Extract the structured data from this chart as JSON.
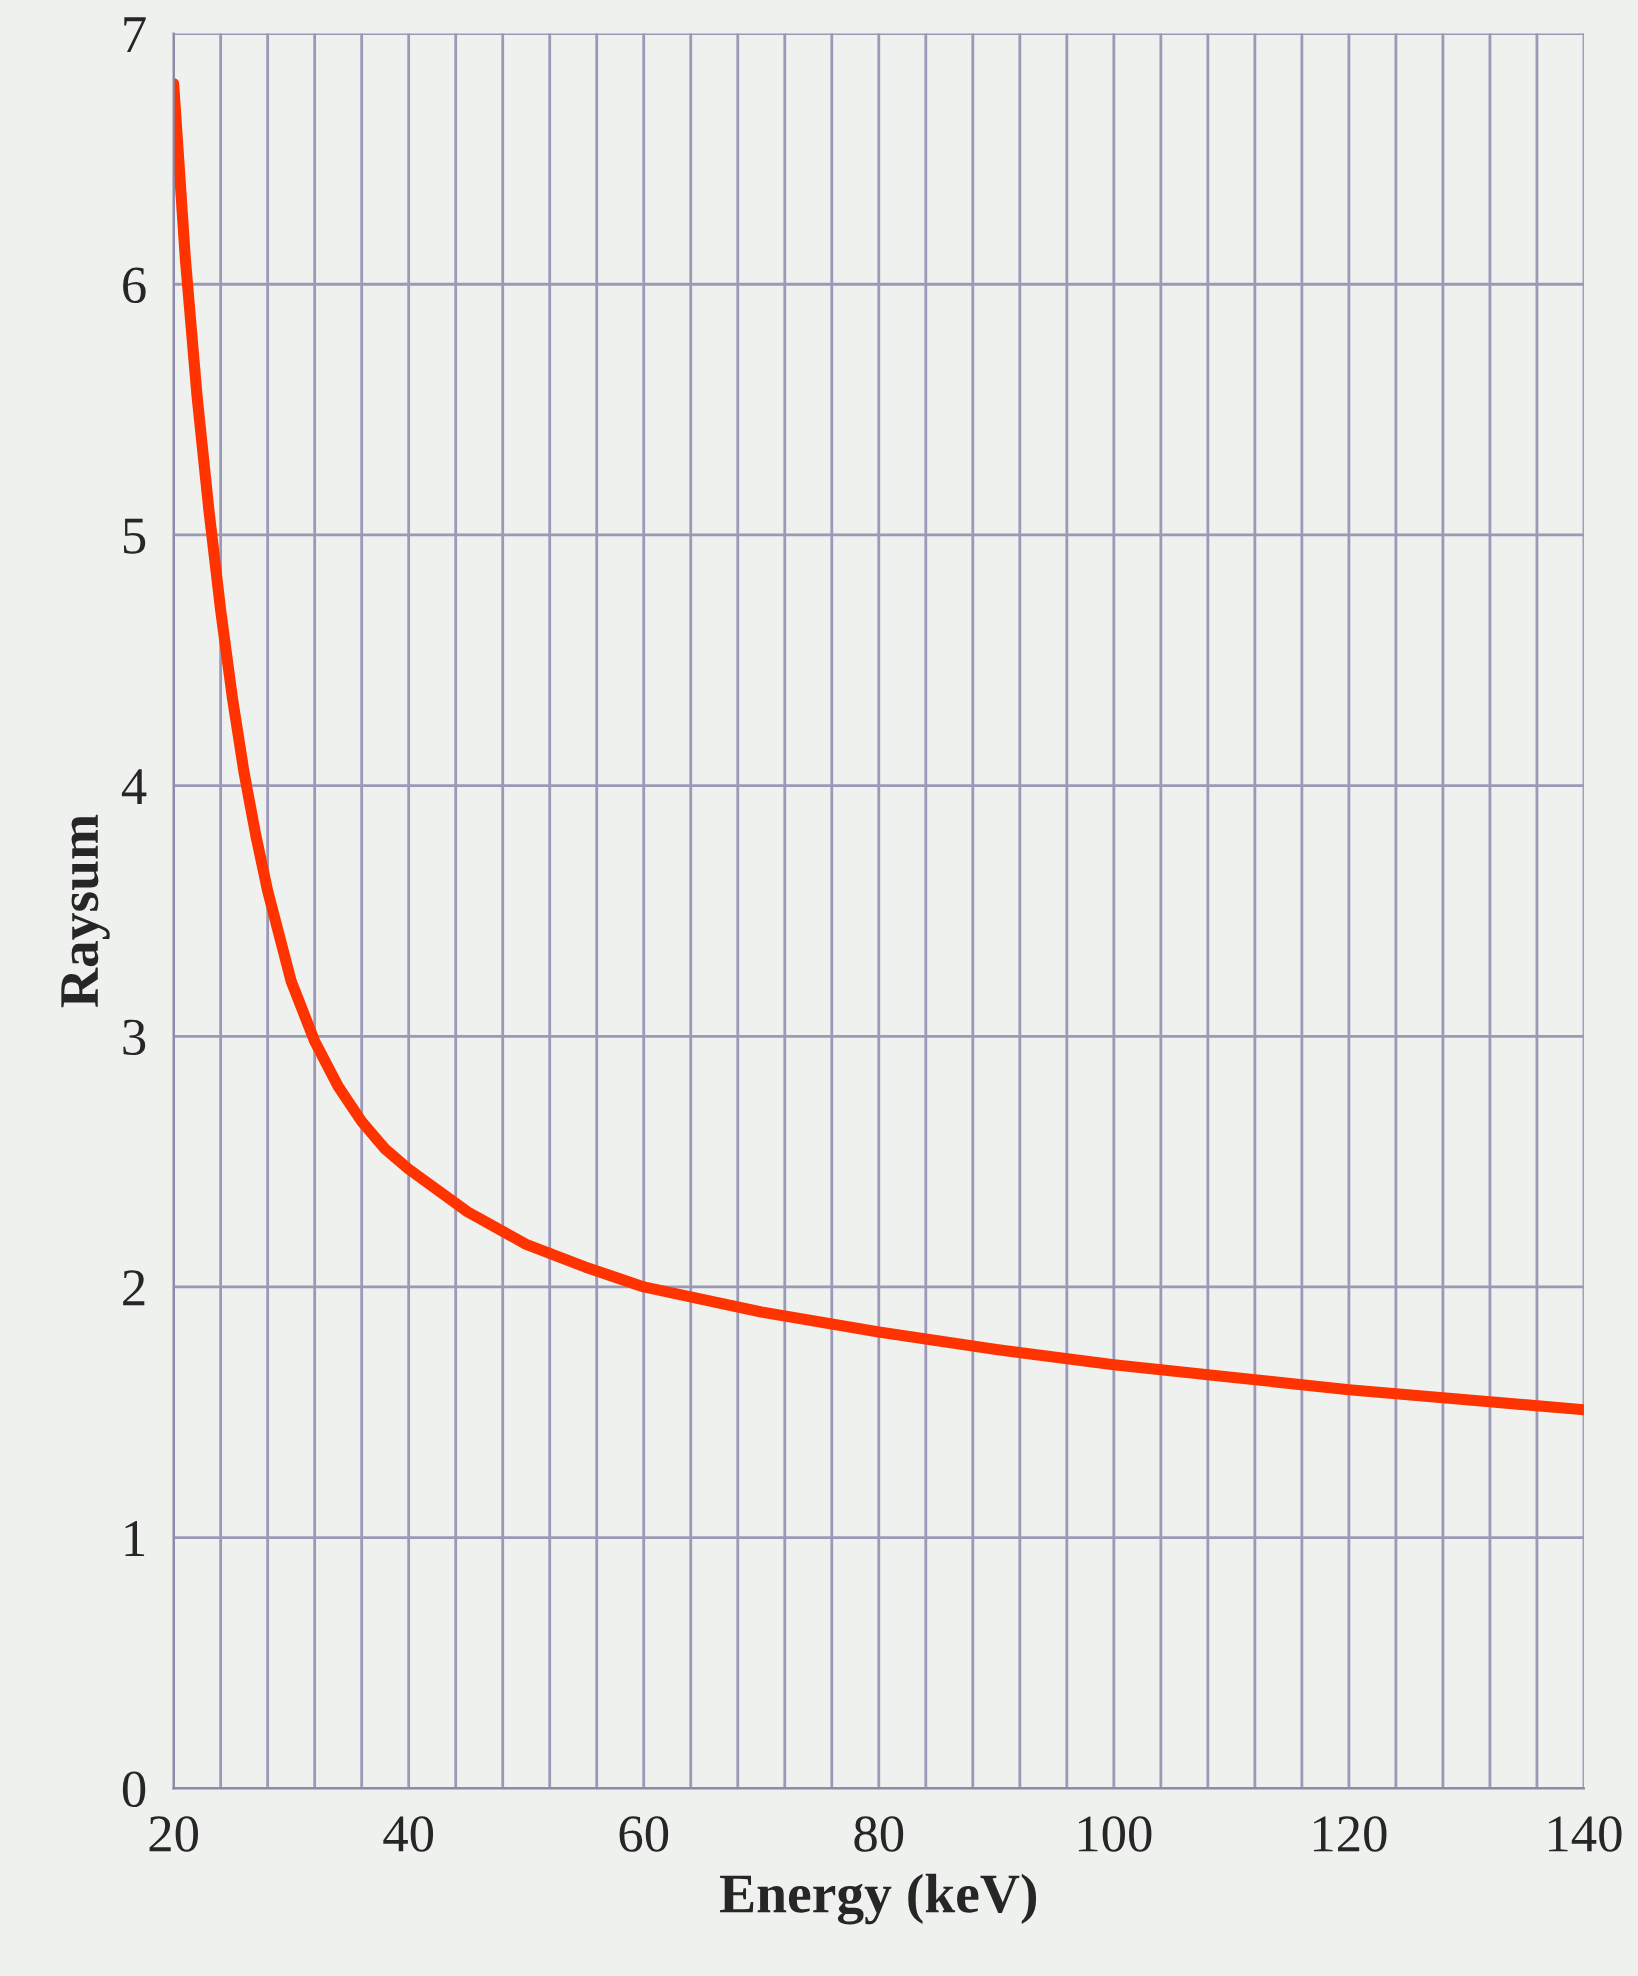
{
  "chart_data": {
    "type": "line",
    "xlabel": "Energy (keV)",
    "ylabel": "Raysum",
    "x": [
      20,
      21,
      22,
      23,
      24,
      25,
      26,
      27,
      28,
      30,
      32,
      34,
      36,
      38,
      40,
      45,
      50,
      55,
      60,
      70,
      80,
      90,
      100,
      110,
      120,
      130,
      140
    ],
    "series": [
      {
        "color": "#ff3300",
        "values": [
          6.8,
          6.1,
          5.55,
          5.1,
          4.7,
          4.35,
          4.05,
          3.8,
          3.58,
          3.22,
          2.98,
          2.8,
          2.66,
          2.55,
          2.47,
          2.3,
          2.17,
          2.08,
          2.0,
          1.9,
          1.82,
          1.75,
          1.69,
          1.64,
          1.59,
          1.55,
          1.51
        ]
      }
    ],
    "xlim": [
      20,
      140
    ],
    "ylim": [
      0,
      7
    ],
    "xticks": [
      20,
      40,
      60,
      80,
      100,
      120,
      140
    ],
    "yticks": [
      0,
      1,
      2,
      3,
      4,
      5,
      6,
      7
    ],
    "grid": true,
    "marker": "none",
    "line_style": "solid"
  }
}
